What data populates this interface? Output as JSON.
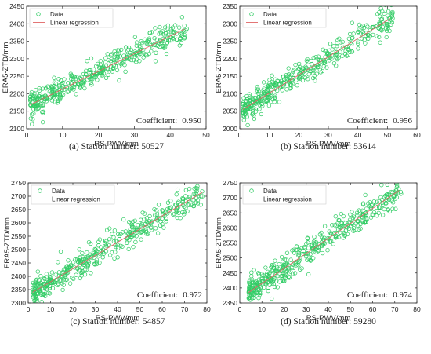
{
  "chart_data": [
    {
      "type": "scatter",
      "caption": "(a) Station number: 50527",
      "xlabel": "RS-PWV/mm",
      "ylabel": "ERA5-ZTD/mm",
      "xlim": [
        0,
        50
      ],
      "ylim": [
        2100,
        2450
      ],
      "xticks": [
        "0",
        "10",
        "20",
        "30",
        "40",
        "50"
      ],
      "yticks": [
        "2100",
        "2150",
        "2200",
        "2250",
        "2300",
        "2350",
        "2400",
        "2450"
      ],
      "coefficient_label": "Coefficient:",
      "coefficient_value": "0.950",
      "legend": [
        "Data",
        "Linear regression"
      ],
      "regression": [
        [
          1,
          2168
        ],
        [
          44,
          2385
        ]
      ],
      "x_range_points": [
        1,
        45
      ],
      "noise": 18,
      "n_points": 420
    },
    {
      "type": "scatter",
      "caption": "(b) Station number: 53614",
      "xlabel": "RS-PWV/mm",
      "ylabel": "ERA5-ZTD/mm",
      "xlim": [
        0,
        60
      ],
      "ylim": [
        2000,
        2350
      ],
      "xticks": [
        "0",
        "10",
        "20",
        "30",
        "40",
        "50",
        "60"
      ],
      "yticks": [
        "2000",
        "2050",
        "2100",
        "2150",
        "2200",
        "2250",
        "2300",
        "2350"
      ],
      "coefficient_label": "Coefficient:",
      "coefficient_value": "0.956",
      "legend": [
        "Data",
        "Linear regression"
      ],
      "regression": [
        [
          1,
          2055
        ],
        [
          51,
          2315
        ]
      ],
      "x_range_points": [
        1,
        52
      ],
      "noise": 20,
      "n_points": 420
    },
    {
      "type": "scatter",
      "caption": "(c) Station number: 54857",
      "xlabel": "RS-PWV/mm",
      "ylabel": "ERA5-ZTD/mm",
      "xlim": [
        0,
        80
      ],
      "ylim": [
        2300,
        2750
      ],
      "xticks": [
        "0",
        "10",
        "20",
        "30",
        "40",
        "50",
        "60",
        "70",
        "80"
      ],
      "yticks": [
        "2300",
        "2350",
        "2400",
        "2450",
        "2500",
        "2550",
        "2600",
        "2650",
        "2700",
        "2750"
      ],
      "coefficient_label": "Coefficient:",
      "coefficient_value": "0.972",
      "legend": [
        "Data",
        "Linear regression"
      ],
      "regression": [
        [
          2,
          2340
        ],
        [
          78,
          2715
        ]
      ],
      "x_range_points": [
        2,
        78
      ],
      "noise": 25,
      "n_points": 460
    },
    {
      "type": "scatter",
      "caption": "(d) Station number: 59280",
      "xlabel": "RS-PWV/mm",
      "ylabel": "ERA5-ZTD/mm",
      "xlim": [
        0,
        80
      ],
      "ylim": [
        2350,
        2750
      ],
      "xticks": [
        "0",
        "10",
        "20",
        "30",
        "40",
        "50",
        "60",
        "70",
        "80"
      ],
      "yticks": [
        "2350",
        "2400",
        "2450",
        "2500",
        "2550",
        "2600",
        "2650",
        "2700",
        "2750"
      ],
      "coefficient_label": "Coefficient:",
      "coefficient_value": "0.974",
      "legend": [
        "Data",
        "Linear regression"
      ],
      "regression": [
        [
          4,
          2385
        ],
        [
          72,
          2725
        ]
      ],
      "x_range_points": [
        4,
        73
      ],
      "noise": 22,
      "n_points": 460
    }
  ],
  "colors": {
    "data": "#33cc66",
    "regression": "#e06666",
    "axis": "#262626"
  }
}
